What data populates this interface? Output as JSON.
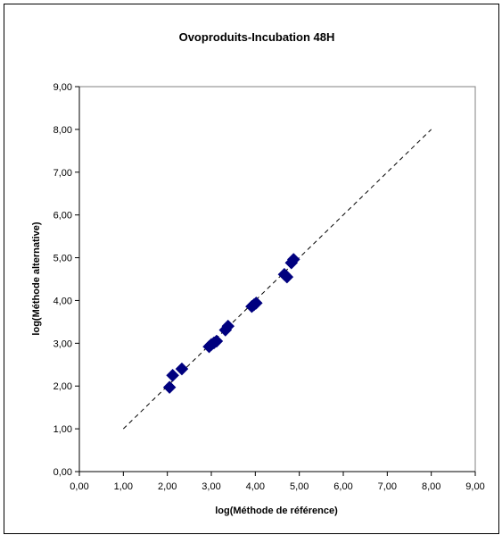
{
  "chart_data": {
    "type": "scatter",
    "title": "Ovoproduits-Incubation 48H",
    "xlabel": "log(Méthode de référence)",
    "ylabel": "log(Méthode alternative)",
    "xlim": [
      0,
      9
    ],
    "ylim": [
      0,
      9
    ],
    "x_ticks": [
      "0,00",
      "1,00",
      "2,00",
      "3,00",
      "4,00",
      "5,00",
      "6,00",
      "7,00",
      "8,00",
      "9,00"
    ],
    "y_ticks": [
      "0,00",
      "1,00",
      "2,00",
      "3,00",
      "4,00",
      "5,00",
      "6,00",
      "7,00",
      "8,00",
      "9,00"
    ],
    "grid": false,
    "marker": "diamond",
    "marker_color": "#00007f",
    "points": [
      {
        "x": 2.05,
        "y": 1.97
      },
      {
        "x": 2.12,
        "y": 2.25
      },
      {
        "x": 2.33,
        "y": 2.4
      },
      {
        "x": 2.95,
        "y": 2.92
      },
      {
        "x": 3.0,
        "y": 2.97
      },
      {
        "x": 3.06,
        "y": 3.01
      },
      {
        "x": 3.12,
        "y": 3.05
      },
      {
        "x": 3.32,
        "y": 3.31
      },
      {
        "x": 3.38,
        "y": 3.4
      },
      {
        "x": 3.92,
        "y": 3.86
      },
      {
        "x": 3.97,
        "y": 3.9
      },
      {
        "x": 4.02,
        "y": 3.94
      },
      {
        "x": 4.66,
        "y": 4.61
      },
      {
        "x": 4.72,
        "y": 4.55
      },
      {
        "x": 4.82,
        "y": 4.88
      },
      {
        "x": 4.87,
        "y": 4.96
      }
    ],
    "reference_line": {
      "style": "dashed",
      "color": "#000000",
      "x": [
        1,
        8
      ],
      "y": [
        1,
        8
      ]
    }
  }
}
